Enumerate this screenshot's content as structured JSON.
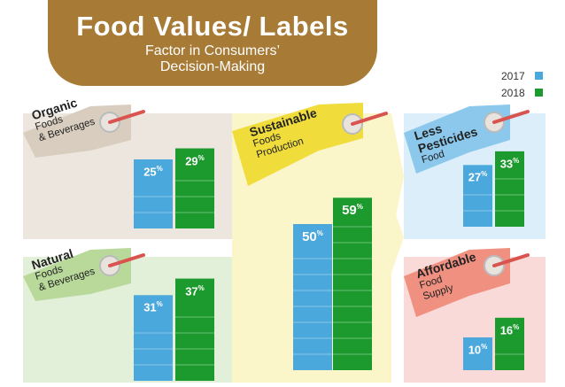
{
  "title": "Food Values/ Labels",
  "subtitle_line1": "Factor in Consumers’",
  "subtitle_line2": "Decision-Making",
  "colors": {
    "y2017": "#4aa8dc",
    "y2018": "#1d9a2d",
    "banner": "#a77a36"
  },
  "legend": [
    {
      "label": "2017",
      "color": "#4aa8dc"
    },
    {
      "label": "2018",
      "color": "#1d9a2d"
    }
  ],
  "chart_data": {
    "type": "bar",
    "title": "Food Values/ Labels",
    "subtitle": "Factor in Consumers’ Decision-Making",
    "unit": "%",
    "series_names": [
      "2017",
      "2018"
    ],
    "categories": [
      {
        "head": "Organic",
        "line1": "Foods",
        "line2": "& Beverages",
        "values": [
          25,
          29
        ]
      },
      {
        "head": "Natural",
        "line1": "Foods",
        "line2": "& Beverages",
        "values": [
          31,
          37
        ]
      },
      {
        "head": "Sustainable",
        "line1": "Foods",
        "line2": "Production",
        "values": [
          50,
          59
        ]
      },
      {
        "head": "Less",
        "head2": "Pesticides",
        "line1": "Food",
        "values": [
          27,
          33
        ]
      },
      {
        "head": "Affordable",
        "line1": "Food",
        "line2": "Supply",
        "values": [
          10,
          16
        ]
      }
    ]
  }
}
